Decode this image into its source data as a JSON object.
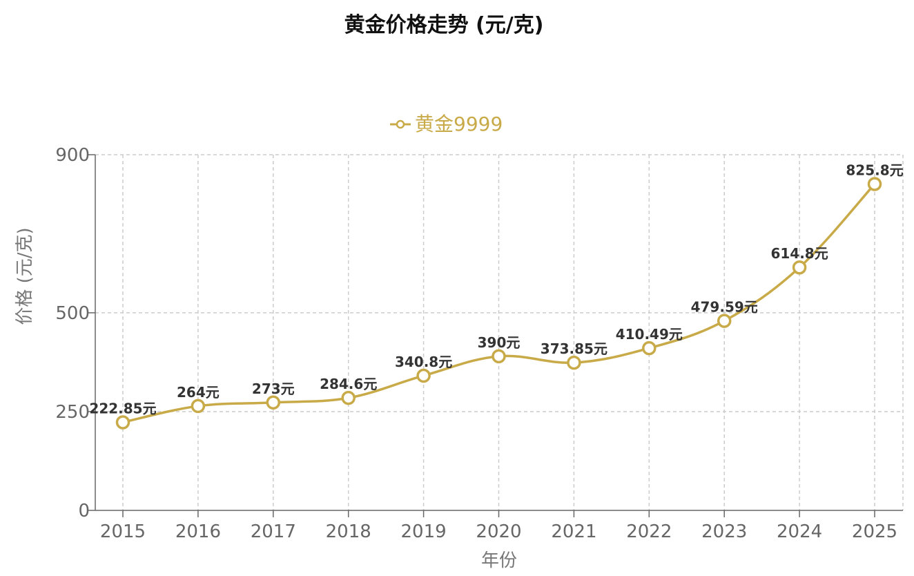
{
  "chart_data": {
    "type": "line",
    "title": "黄金价格走势 (元/克)",
    "xlabel": "年份",
    "ylabel": "价格 (元/克)",
    "categories": [
      "2015",
      "2016",
      "2017",
      "2018",
      "2019",
      "2020",
      "2021",
      "2022",
      "2023",
      "2024",
      "2025"
    ],
    "series": [
      {
        "name": "黄金9999",
        "values": [
          222.85,
          264,
          273,
          284.6,
          340.8,
          390,
          373.85,
          410.49,
          479.59,
          614.8,
          825.8
        ],
        "color": "#c9aa48"
      }
    ],
    "data_labels": [
      "222.85元",
      "264元",
      "273元",
      "284.6元",
      "340.8元",
      "390元",
      "373.85元",
      "410.49元",
      "479.59元",
      "614.8元",
      "825.8元"
    ],
    "yticks": [
      0,
      250,
      500,
      900
    ],
    "ylim": [
      0,
      900
    ],
    "grid": true,
    "legend_position": "top-center",
    "smooth": true
  }
}
